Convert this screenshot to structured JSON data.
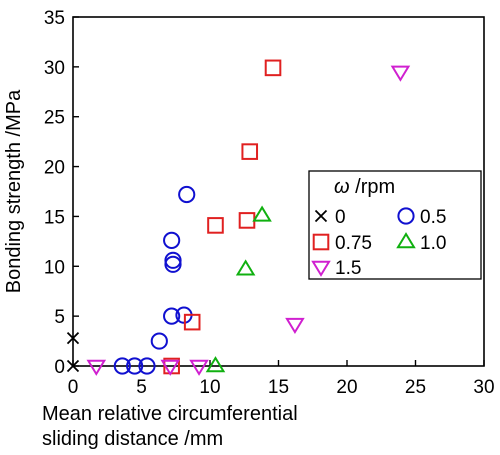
{
  "chart_data": {
    "type": "scatter",
    "xlabel": [
      "Mean relative circumferential",
      "sliding distance /mm"
    ],
    "ylabel": "Bonding strength /MPa",
    "xlim": [
      0,
      30
    ],
    "ylim": [
      0,
      35
    ],
    "xticks": [
      0,
      5,
      10,
      15,
      20,
      25,
      30
    ],
    "yticks": [
      0,
      5,
      10,
      15,
      20,
      25,
      30,
      35
    ],
    "grid": false,
    "legend": {
      "placement": "center-right",
      "title_symbol": "ω",
      "title_unit": " /rpm"
    },
    "series": [
      {
        "name": "0",
        "marker": "x",
        "color": "#000000",
        "points": [
          [
            0,
            0
          ],
          [
            0,
            2.8
          ]
        ]
      },
      {
        "name": "0.5",
        "marker": "circle",
        "color": "#1010d0",
        "points": [
          [
            3.6,
            0
          ],
          [
            4.5,
            0
          ],
          [
            5.4,
            0
          ],
          [
            6.3,
            2.5
          ],
          [
            7.2,
            5.0
          ],
          [
            8.1,
            5.1
          ],
          [
            7.3,
            10.2
          ],
          [
            7.3,
            10.6
          ],
          [
            7.2,
            12.6
          ],
          [
            8.3,
            17.2
          ]
        ]
      },
      {
        "name": "0.75",
        "marker": "square",
        "color": "#e02020",
        "points": [
          [
            7.2,
            0
          ],
          [
            8.7,
            4.4
          ],
          [
            10.4,
            14.1
          ],
          [
            12.7,
            14.6
          ],
          [
            12.9,
            21.5
          ],
          [
            14.6,
            29.9
          ]
        ]
      },
      {
        "name": "1.0",
        "marker": "triangle-up",
        "color": "#10b010",
        "points": [
          [
            10.4,
            0
          ],
          [
            12.6,
            9.7
          ],
          [
            13.8,
            15.1
          ]
        ]
      },
      {
        "name": "1.5",
        "marker": "triangle-down",
        "color": "#d020d0",
        "points": [
          [
            1.7,
            0
          ],
          [
            7.1,
            0
          ],
          [
            9.2,
            0
          ],
          [
            16.2,
            4.2
          ],
          [
            23.9,
            29.5
          ]
        ]
      }
    ]
  }
}
